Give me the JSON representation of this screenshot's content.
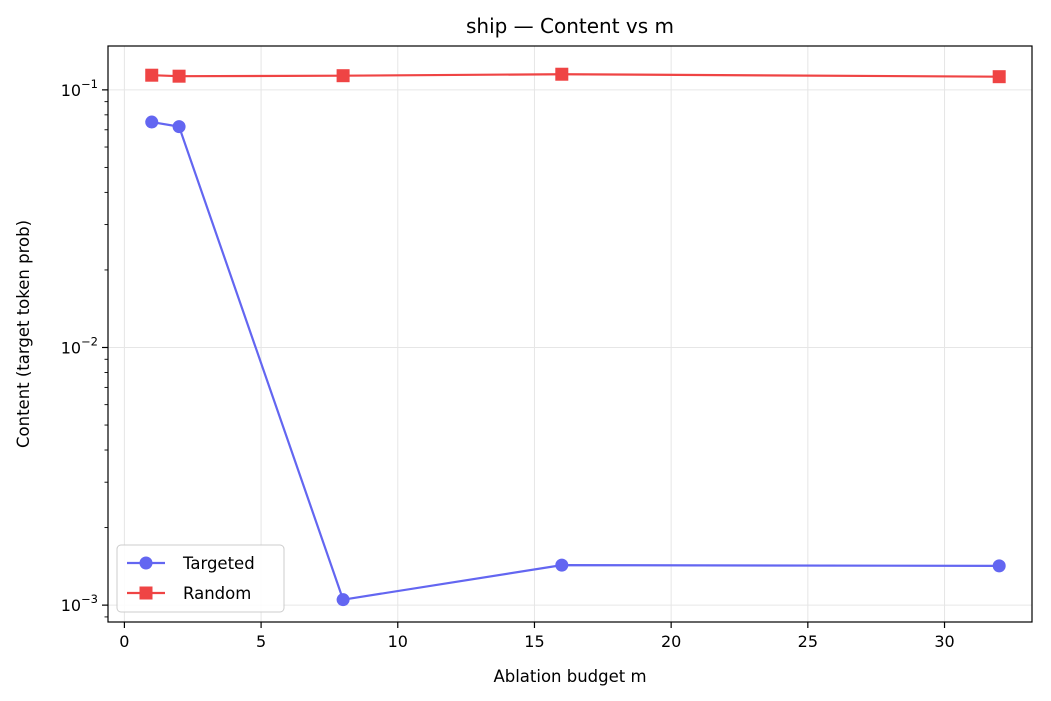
{
  "chart_data": {
    "type": "line",
    "title": "ship — Content vs m",
    "xlabel": "Ablation budget m",
    "ylabel": "Content (target token prob)",
    "xlim": [
      -0.6,
      33.2
    ],
    "ylim": [
      0.00086,
      0.148
    ],
    "yscale": "log",
    "grid": true,
    "legend_position": "lower-left",
    "x_ticks": [
      0,
      5,
      10,
      15,
      20,
      25,
      30
    ],
    "y_ticks": [
      {
        "value": 0.001,
        "base": "10",
        "exp": "−3"
      },
      {
        "value": 0.01,
        "base": "10",
        "exp": "−2"
      },
      {
        "value": 0.1,
        "base": "10",
        "exp": "−1"
      }
    ],
    "series": [
      {
        "name": "Targeted",
        "color": "#6366f1",
        "marker": "circle",
        "x": [
          1,
          2,
          8,
          16,
          32
        ],
        "y": [
          0.075,
          0.072,
          0.00105,
          0.00143,
          0.00142
        ]
      },
      {
        "name": "Random",
        "color": "#ef4444",
        "marker": "square",
        "x": [
          1,
          2,
          8,
          16,
          32
        ],
        "y": [
          0.114,
          0.113,
          0.1135,
          0.115,
          0.1125
        ]
      }
    ]
  }
}
